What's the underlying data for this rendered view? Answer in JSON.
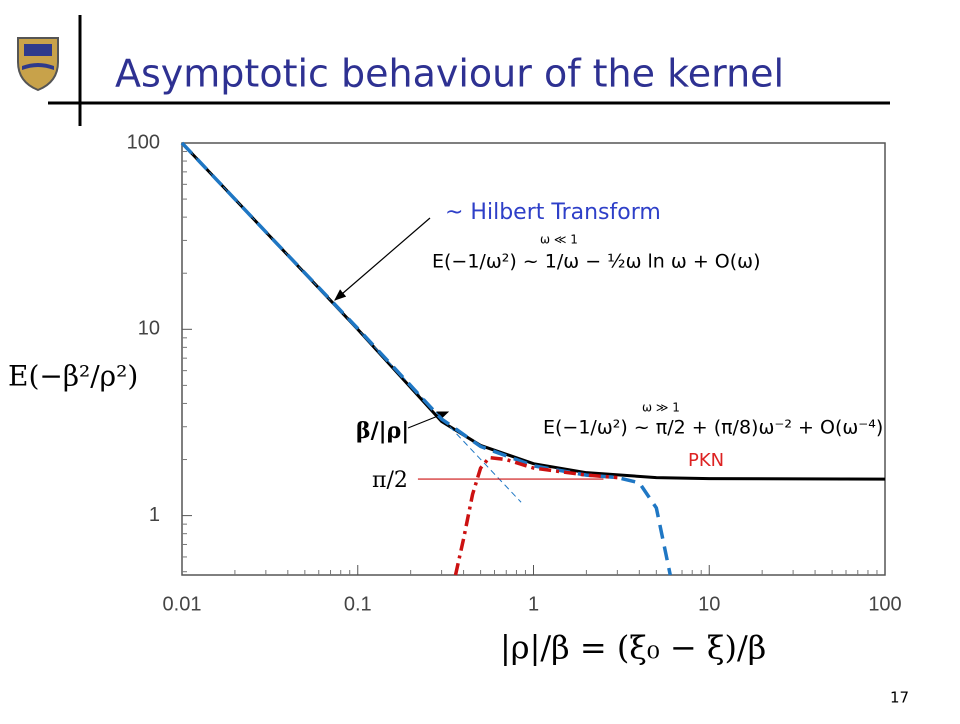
{
  "slide": {
    "title": "Asymptotic behaviour of the kernel",
    "page_number": "17"
  },
  "chart_data": {
    "type": "line",
    "y_label": "E(−β²/ρ²)",
    "x_label": "|ρ|/β = (ξ₀ − ξ)/β",
    "log_x": true,
    "log_y": true,
    "xlim": [
      0.01,
      100
    ],
    "ylim": [
      0.48,
      100
    ],
    "xticks": [
      0.01,
      0.1,
      1,
      10,
      100
    ],
    "yticks": [
      1,
      10,
      100
    ],
    "annotations": {
      "hilbert": "~ Hilbert Transform",
      "formula_small": "E(−1/ω²) ~ 1/ω − ½ω ln ω + O(ω)",
      "condition_small": "ω ≪ 1",
      "formula_large": "E(−1/ω²) ~ π/2 + (π/8)ω⁻² + O(ω⁻⁴)",
      "condition_large": "ω ≫ 1",
      "beta_rho": "β/|ρ|",
      "pi_half": "π/2",
      "pkn": "PKN"
    },
    "series": [
      {
        "color": "#000000",
        "dash": "solid",
        "width": 3,
        "x": [
          0.01,
          0.03,
          0.1,
          0.3,
          0.5,
          1,
          2,
          5,
          10,
          100
        ],
        "values": [
          100,
          33.3,
          10.0,
          3.2,
          2.38,
          1.9,
          1.7,
          1.6,
          1.58,
          1.571
        ]
      },
      {
        "color": "#1f77c4",
        "dash": "dash",
        "width": 3.5,
        "x": [
          0.01,
          0.03,
          0.1,
          0.3,
          0.5,
          1,
          2,
          3,
          4,
          5,
          6
        ],
        "values": [
          100,
          33.3,
          10.1,
          3.3,
          2.35,
          1.85,
          1.65,
          1.6,
          1.5,
          1.1,
          0.48
        ]
      },
      {
        "color": "#cc1111",
        "dash": "dashdot",
        "width": 3.5,
        "x": [
          0.36,
          0.4,
          0.45,
          0.5,
          0.56,
          0.7,
          1,
          2,
          3
        ],
        "values": [
          0.48,
          0.75,
          1.3,
          1.8,
          2.05,
          2.0,
          1.8,
          1.65,
          1.6
        ]
      },
      {
        "color": "#1f77c4",
        "dash": "thin",
        "width": 1,
        "x": [
          0.01,
          0.85
        ],
        "values": [
          100,
          1.18
        ]
      },
      {
        "color": "#cc1111",
        "dash": "solid",
        "width": 1.2,
        "x": [
          0.22,
          2.5
        ],
        "values": [
          1.5708,
          1.5708
        ]
      }
    ]
  }
}
